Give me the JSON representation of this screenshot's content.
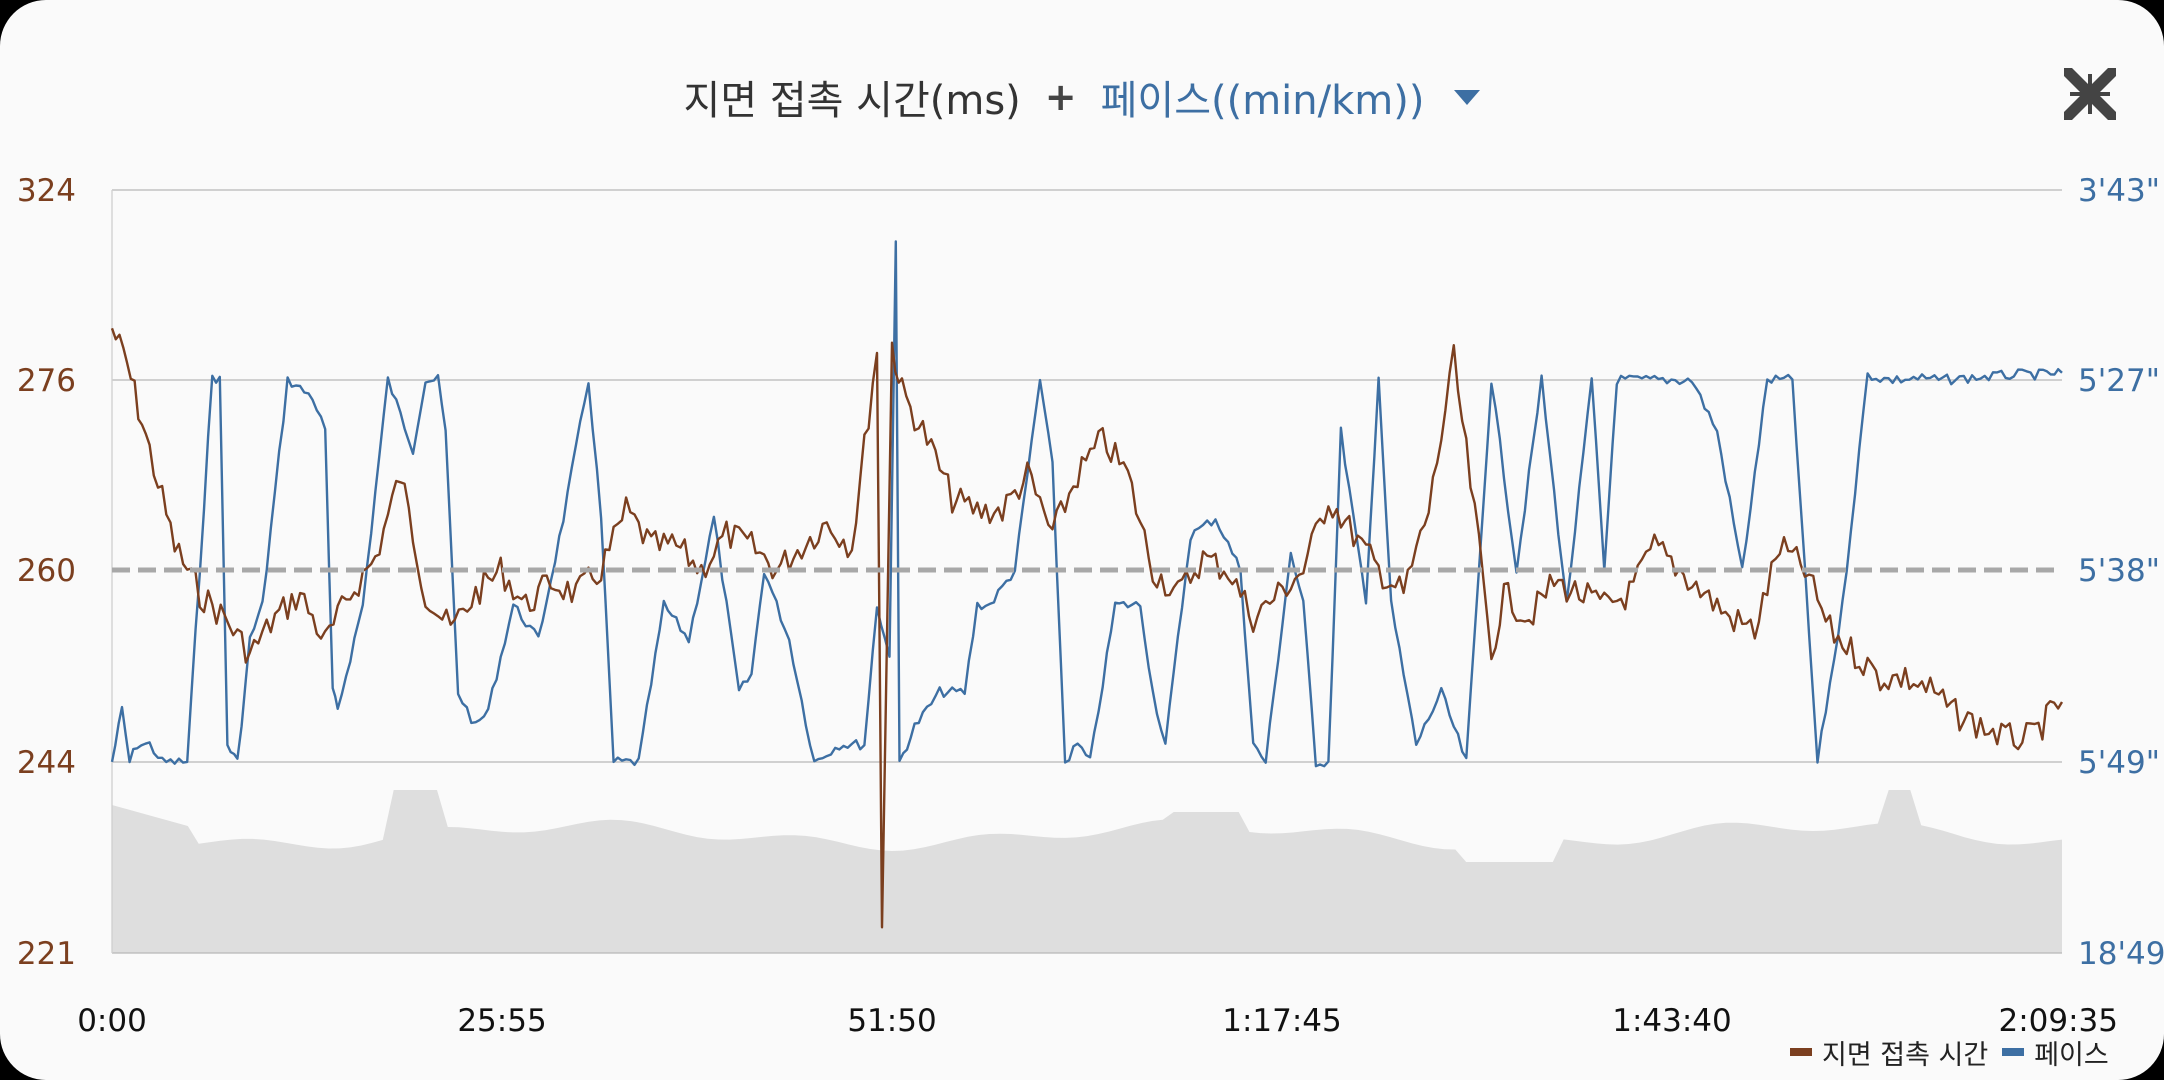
{
  "header": {
    "metric1": "지면 접촉 시간(ms)",
    "plus": "+",
    "metric2": "페이스((min/km))",
    "dropdown_icon": "caret-down-icon",
    "collapse_icon": "collapse-arrows-icon"
  },
  "colors": {
    "gct": "#7b3f1f",
    "pace": "#3d6fa3",
    "elevation": "#dedede",
    "grid": "#b8b8b8",
    "avg_line": "#a8a8a8"
  },
  "chart_data": {
    "type": "line",
    "x_tick_labels": [
      "0:00",
      "25:55",
      "51:50",
      "1:17:45",
      "1:43:40",
      "2:09:35"
    ],
    "x_range_seconds": [
      0,
      7775
    ],
    "y_left": {
      "label": "지면 접촉 시간(ms)",
      "tick_labels": [
        "324",
        "276",
        "260",
        "244",
        "221"
      ],
      "range": [
        221,
        324
      ]
    },
    "y_right": {
      "label": "페이스((min/km))",
      "tick_labels": [
        "3'43\"",
        "5'27\"",
        "5'38\"",
        "5'49\"",
        "18'49\""
      ]
    },
    "average_line_left": 260,
    "series": [
      {
        "name": "지면 접촉 시간",
        "color": "#7b3f1f",
        "x": [
          0,
          60,
          150,
          250,
          350,
          450,
          550,
          650,
          750,
          850,
          950,
          1050,
          1150,
          1250,
          1350,
          1450,
          1550,
          1650,
          1750,
          1850,
          1950,
          2050,
          2150,
          2250,
          2350,
          2450,
          2550,
          2650,
          2750,
          2850,
          2950,
          3050,
          3070,
          3110,
          3150,
          3250,
          3350,
          3450,
          3550,
          3650,
          3750,
          3850,
          3950,
          4050,
          4150,
          4250,
          4350,
          4450,
          4550,
          4650,
          4750,
          4850,
          4950,
          5050,
          5150,
          5250,
          5350,
          5450,
          5500,
          5550,
          5650,
          5750,
          5850,
          5950,
          6050,
          6150,
          6250,
          6350,
          6450,
          6550,
          6650,
          6750,
          6850,
          6950,
          7050,
          7150,
          7250,
          7350,
          7450,
          7550,
          7650,
          7775
        ],
        "values": [
          289,
          280,
          270,
          262,
          258,
          256,
          253,
          256,
          258,
          254,
          258,
          261,
          268,
          258,
          255,
          258,
          260,
          257,
          259,
          258,
          260,
          265,
          262,
          262,
          260,
          263,
          262,
          260,
          262,
          264,
          262,
          284,
          225,
          285,
          275,
          271,
          266,
          265,
          265,
          268,
          263,
          268,
          271,
          268,
          260,
          258,
          261,
          260,
          256,
          258,
          260,
          266,
          263,
          260,
          258,
          265,
          281,
          262,
          253,
          258,
          256,
          259,
          258,
          257,
          258,
          262,
          260,
          258,
          256,
          255,
          262,
          260,
          255,
          253,
          251,
          251,
          250,
          248,
          247,
          246,
          246,
          249
        ]
      },
      {
        "name": "페이스",
        "color": "#3d6fa3",
        "x": [
          0,
          40,
          70,
          100,
          150,
          200,
          300,
          400,
          430,
          460,
          500,
          550,
          600,
          700,
          800,
          850,
          880,
          900,
          1000,
          1100,
          1200,
          1250,
          1300,
          1330,
          1380,
          1450,
          1500,
          1600,
          1700,
          1800,
          1900,
          1950,
          2000,
          2100,
          2200,
          2300,
          2400,
          2500,
          2550,
          2600,
          2700,
          2800,
          2900,
          3000,
          3050,
          3100,
          3125,
          3140,
          3200,
          3300,
          3400,
          3450,
          3500,
          3600,
          3700,
          3750,
          3800,
          3850,
          3900,
          4000,
          4100,
          4150,
          4200,
          4300,
          4400,
          4500,
          4550,
          4600,
          4700,
          4750,
          4800,
          4850,
          4900,
          5000,
          5050,
          5100,
          5200,
          5300,
          5400,
          5500,
          5600,
          5700,
          5800,
          5900,
          5950,
          6000,
          6100,
          6200,
          6300,
          6400,
          6500,
          6600,
          6700,
          6800,
          6900,
          7000,
          7050,
          7100,
          7200,
          7300,
          7400,
          7500,
          7600,
          7700,
          7775
        ],
        "values": [
          "5'49\"",
          "5'46\"",
          "5'49\"",
          "5'48\"",
          "5'48\"",
          "5'49\"",
          "5'49\"",
          "5'25\"",
          "5'27\"",
          "5'48\"",
          "5'49\"",
          "5'42\"",
          "5'40\"",
          "5'27\"",
          "5'28\"",
          "5'30\"",
          "5'45\"",
          "5'46\"",
          "5'40\"",
          "5'27\"",
          "5'31\"",
          "5'27\"",
          "5'27\"",
          "5'30\"",
          "5'45\"",
          "5'47\"",
          "5'46\"",
          "5'40\"",
          "5'42\"",
          "5'35\"",
          "5'27\"",
          "5'35\"",
          "5'49\"",
          "5'49\"",
          "5'40\"",
          "5'42\"",
          "5'35\"",
          "5'45\"",
          "5'44\"",
          "5'38\"",
          "5'42\"",
          "5'49\"",
          "5'48\"",
          "5'48\"",
          "5'40\"",
          "5'43\"",
          "4'10\"",
          "5'50\"",
          "5'47\"",
          "5'45\"",
          "5'45\"",
          "5'40\"",
          "5'40\"",
          "5'38\"",
          "5'27\"",
          "5'32\"",
          "5'49\"",
          "5'48\"",
          "5'49\"",
          "5'40\"",
          "5'40\"",
          "5'45\"",
          "5'48\"",
          "5'36\"",
          "5'35\"",
          "5'38\"",
          "5'48\"",
          "5'49\"",
          "5'37\"",
          "5'40\"",
          "5'49\"",
          "5'49\"",
          "5'30\"",
          "5'40\"",
          "5'24\"",
          "5'40\"",
          "5'48\"",
          "5'45\"",
          "5'49\"",
          "5'27\"",
          "5'38\"",
          "5'27\"",
          "5'40\"",
          "5'27\"",
          "5'38\"",
          "5'27\"",
          "5'27\"",
          "5'27\"",
          "5'27\"",
          "5'30\"",
          "5'38\"",
          "5'27\"",
          "5'27\"",
          "5'49\"",
          "5'40\"",
          "5'24\"",
          "5'26\"",
          "5'27\"",
          "5'26\"",
          "5'27\"",
          "5'26\"",
          "5'25\"",
          "5'24\"",
          "5'24\"",
          "5'23\""
        ]
      }
    ],
    "legend": [
      "지면 접촉 시간",
      "페이스"
    ],
    "legend_placement": "bottom-right"
  },
  "legend": {
    "gct_label": "지면 접촉 시간",
    "pace_label": "페이스"
  }
}
